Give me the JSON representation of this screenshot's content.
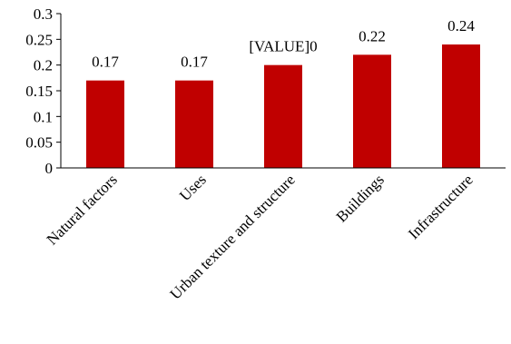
{
  "chart_data": {
    "type": "bar",
    "categories": [
      "Natural factors",
      "Uses",
      "Urban texture and structure",
      "Buildings",
      "Infrastructure"
    ],
    "values": [
      0.17,
      0.17,
      0.2,
      0.22,
      0.24
    ],
    "data_labels": [
      "0.17",
      "0.17",
      "[VALUE]0",
      "0.22",
      "0.24"
    ],
    "y_ticks": [
      "0",
      "0.05",
      "0.1",
      "0.15",
      "0.2",
      "0.25",
      "0.3"
    ],
    "ylim": [
      0,
      0.3
    ],
    "bar_color": "#c00000",
    "grid": false,
    "legend": "none"
  }
}
